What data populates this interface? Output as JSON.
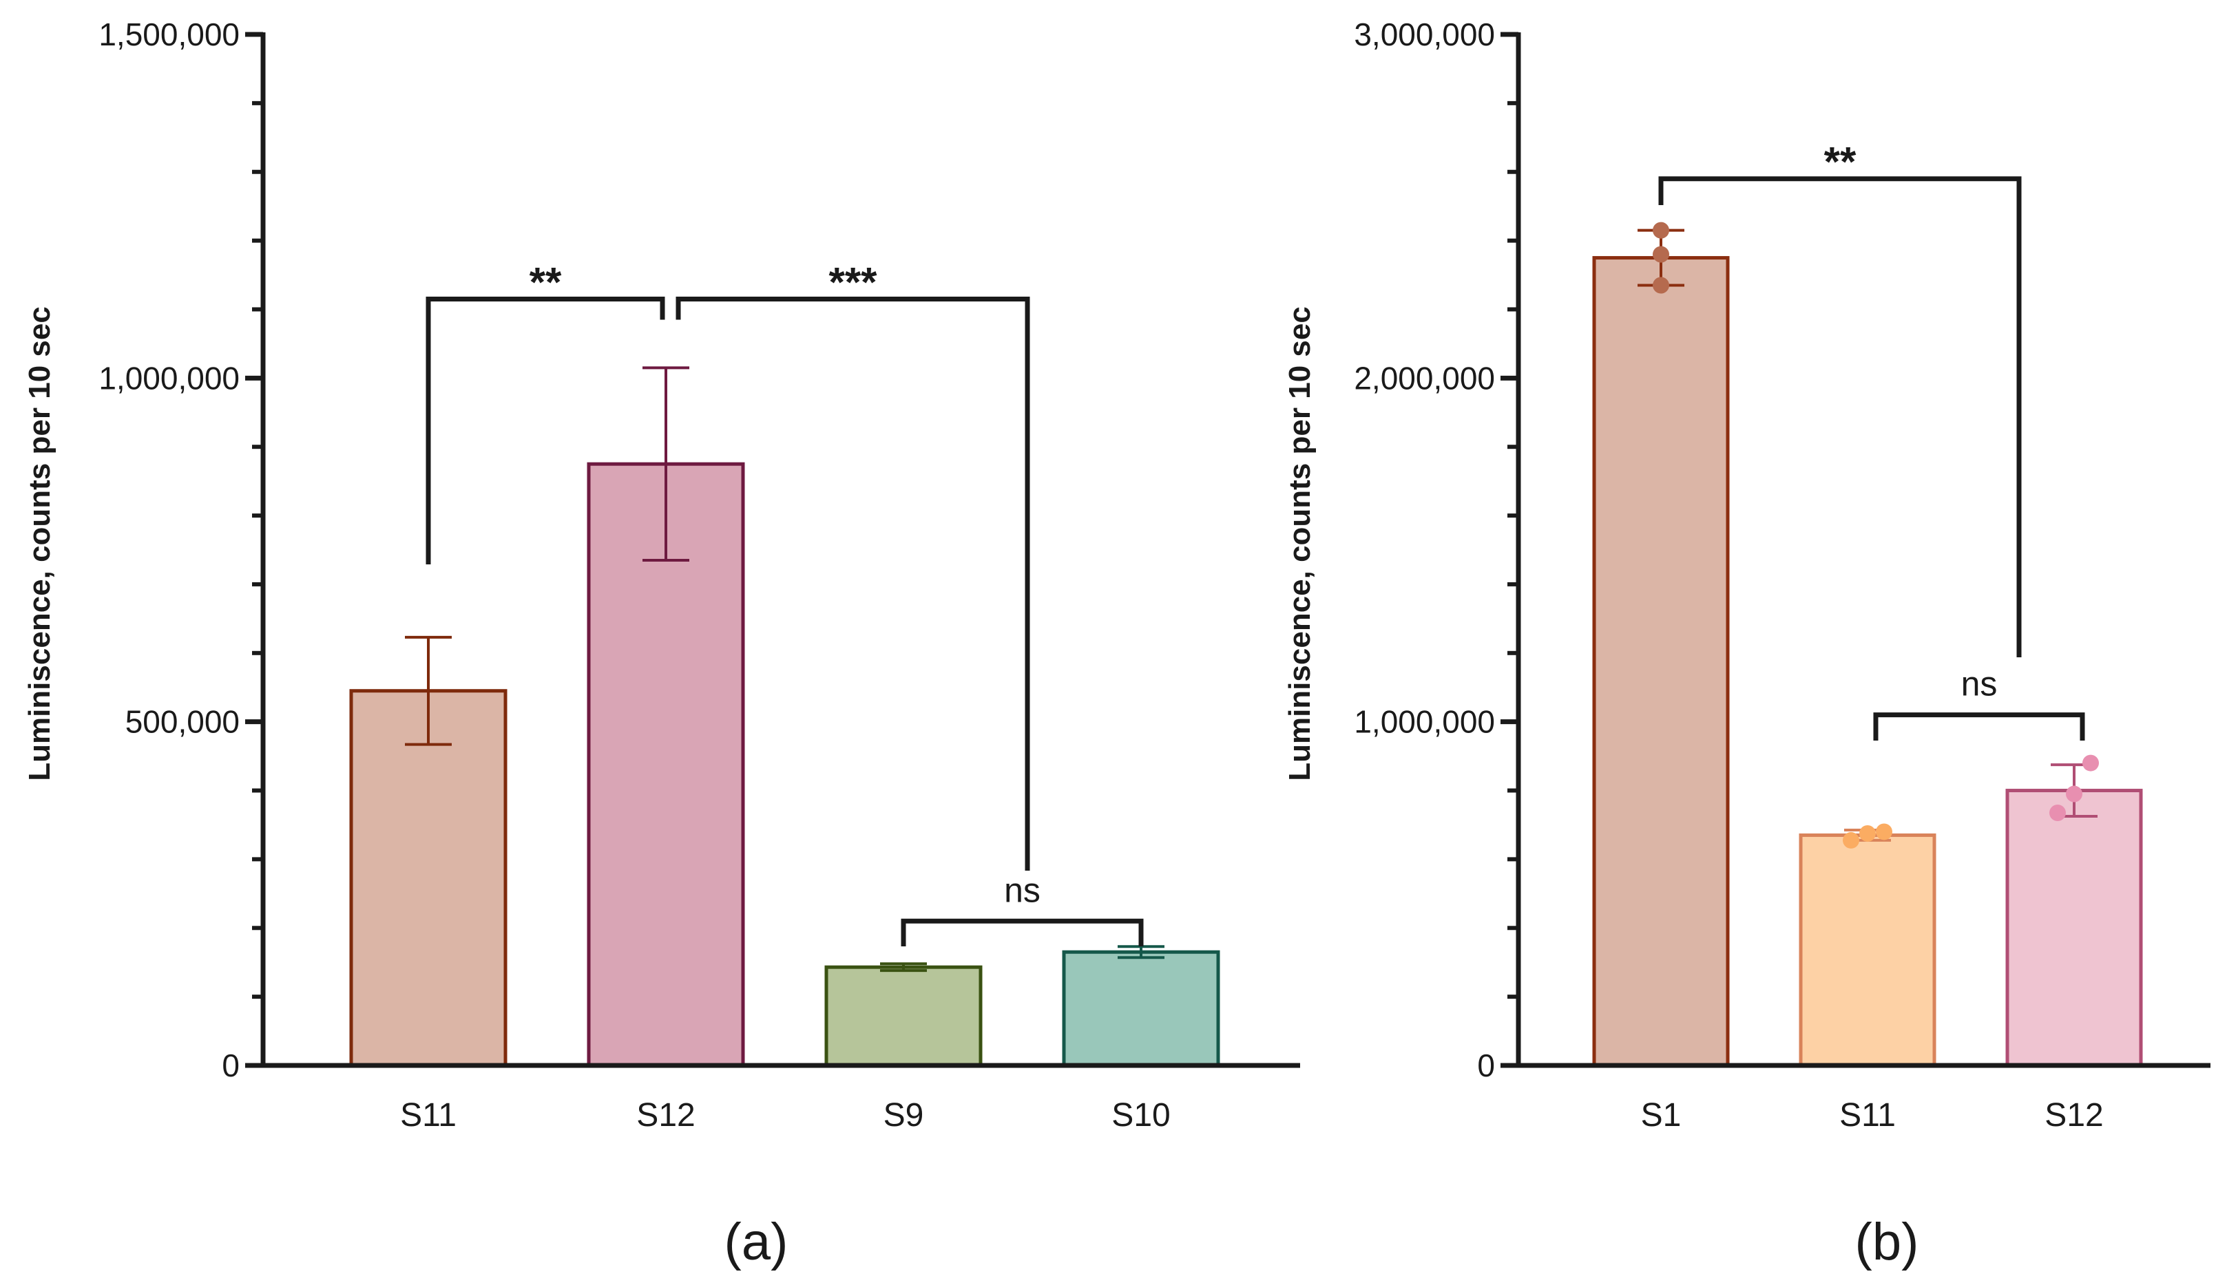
{
  "chart_data": [
    {
      "panel": "(a)",
      "type": "bar",
      "ylabel": "Luminiscence, counts per 10 sec",
      "xlabel": "",
      "ylim": [
        0,
        1500000
      ],
      "major_ticks": [
        0,
        500000,
        1000000,
        1500000
      ],
      "tick_labels": [
        "0",
        "500,000",
        "1,000,000",
        "1,500,000"
      ],
      "categories": [
        "S11",
        "S12",
        "S9",
        "S10"
      ],
      "values": [
        545000,
        875000,
        143000,
        165000
      ],
      "errors": [
        78000,
        140000,
        5000,
        8000
      ],
      "fill_colors": [
        "#dbb5a6",
        "#d9a5b5",
        "#b6c59a",
        "#99c7ba"
      ],
      "edge_colors": [
        "#7e2a0c",
        "#6e1a40",
        "#3a5212",
        "#15584a"
      ],
      "annotations": [
        {
          "from": "S11",
          "to": "S12",
          "label": "**",
          "y": 1115000
        },
        {
          "from": "S12",
          "to": "S10",
          "label": "***",
          "y": 1115000
        },
        {
          "from": "S9",
          "to": "S10",
          "label": "ns",
          "y": 210000
        }
      ]
    },
    {
      "panel": "(b)",
      "type": "bar",
      "ylabel": "Luminiscence, counts per 10 sec",
      "xlabel": "",
      "ylim": [
        0,
        3000000
      ],
      "major_ticks": [
        0,
        1000000,
        2000000,
        3000000
      ],
      "tick_labels": [
        "0",
        "1,000,000",
        "2,000,000",
        "3,000,000"
      ],
      "categories": [
        "S1",
        "S11",
        "S12"
      ],
      "values": [
        2350000,
        670000,
        800000
      ],
      "errors": [
        80000,
        15000,
        75000
      ],
      "points": [
        [
          2270000,
          2360000,
          2430000
        ],
        [
          655000,
          675000,
          680000
        ],
        [
          735000,
          790000,
          880000
        ]
      ],
      "fill_colors": [
        "#dbb5a6",
        "#fdd1a5",
        "#efc4d1"
      ],
      "edge_colors": [
        "#8b2e10",
        "#d9835a",
        "#b04e74"
      ],
      "point_colors": [
        "#b56a4e",
        "#fbac62",
        "#e88fb0"
      ],
      "annotations": [
        {
          "from": "S1",
          "to": "S12",
          "label": "**",
          "y": 2580000
        },
        {
          "from": "S11",
          "to": "S12",
          "label": "ns",
          "y": 1020000
        }
      ]
    }
  ]
}
